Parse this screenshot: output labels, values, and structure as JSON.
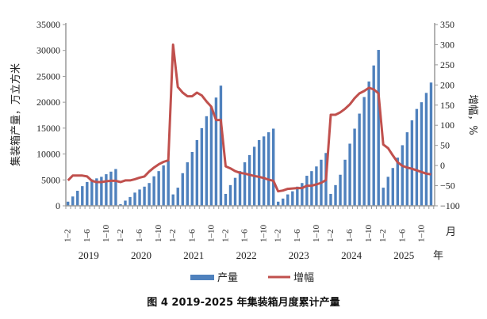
{
  "chart_data": {
    "type": "bar+line",
    "title": "图 4  2019-2025 年集装箱月度累计产量",
    "ylabel_left": "集装箱产量，万立方米",
    "ylabel_right": "增幅，%",
    "xlabel_month_unit": "月",
    "xlabel_year_unit": "年",
    "ylim_left": [
      0,
      35000
    ],
    "yticks_left": [
      0,
      5000,
      10000,
      15000,
      20000,
      25000,
      30000,
      35000
    ],
    "ylim_right": [
      -100,
      350
    ],
    "yticks_right": [
      -100,
      -50,
      0,
      50,
      100,
      150,
      200,
      250,
      300,
      350
    ],
    "years": [
      "2019",
      "2020",
      "2021",
      "2022",
      "2023",
      "2024",
      "2025"
    ],
    "periods": [
      "1-2",
      "1-3",
      "1-4",
      "1-5",
      "1-6",
      "1-7",
      "1-8",
      "1-9",
      "1-10",
      "1-11",
      "1-12"
    ],
    "tick_periods": [
      "1-2",
      "1-6",
      "1-10"
    ],
    "legend_placement": "bottom",
    "colors": {
      "bars": "#4f81bd",
      "line": "#c0504d"
    },
    "series": [
      {
        "name": "产量",
        "type": "bar",
        "axis": "left",
        "values": [
          800,
          1800,
          2900,
          3800,
          4600,
          5100,
          5300,
          5600,
          6100,
          6600,
          7100,
          300,
          1000,
          1700,
          2550,
          3150,
          3700,
          4400,
          5700,
          6700,
          7800,
          8700,
          2200,
          3500,
          6300,
          8400,
          10400,
          12700,
          15000,
          17300,
          19100,
          20900,
          23200,
          2300,
          4000,
          5400,
          6700,
          8400,
          9800,
          11400,
          12700,
          13400,
          14200,
          14900,
          800,
          1400,
          2200,
          2800,
          3700,
          4400,
          5800,
          6700,
          7600,
          8900,
          10200,
          2300,
          4000,
          6000,
          8900,
          12000,
          14900,
          17800,
          21000,
          24000,
          27100,
          30100,
          3500,
          5600,
          7300,
          9300,
          11700,
          14200,
          16500,
          18700,
          20000,
          21800,
          23800
        ]
      },
      {
        "name": "增幅",
        "type": "line",
        "axis": "right",
        "values": [
          -37,
          -25,
          -25,
          -25,
          -27,
          -38,
          -41,
          -41,
          -39,
          -38,
          -38,
          -41,
          -37,
          -37,
          -34,
          -30,
          -27,
          -15,
          -5,
          3,
          9,
          13,
          300,
          195,
          181,
          172,
          172,
          181,
          174,
          159,
          146,
          113,
          113,
          -2,
          -7,
          -14,
          -18,
          -20,
          -23,
          -26,
          -28,
          -31,
          -35,
          -38,
          -64,
          -62,
          -58,
          -57,
          -56,
          -56,
          -50,
          -50,
          -47,
          -43,
          -36,
          126,
          126,
          132,
          141,
          152,
          167,
          179,
          185,
          193,
          189,
          179,
          52,
          43,
          25,
          8,
          -1,
          -5,
          -8,
          -12,
          -16,
          -20,
          -22
        ]
      }
    ]
  }
}
